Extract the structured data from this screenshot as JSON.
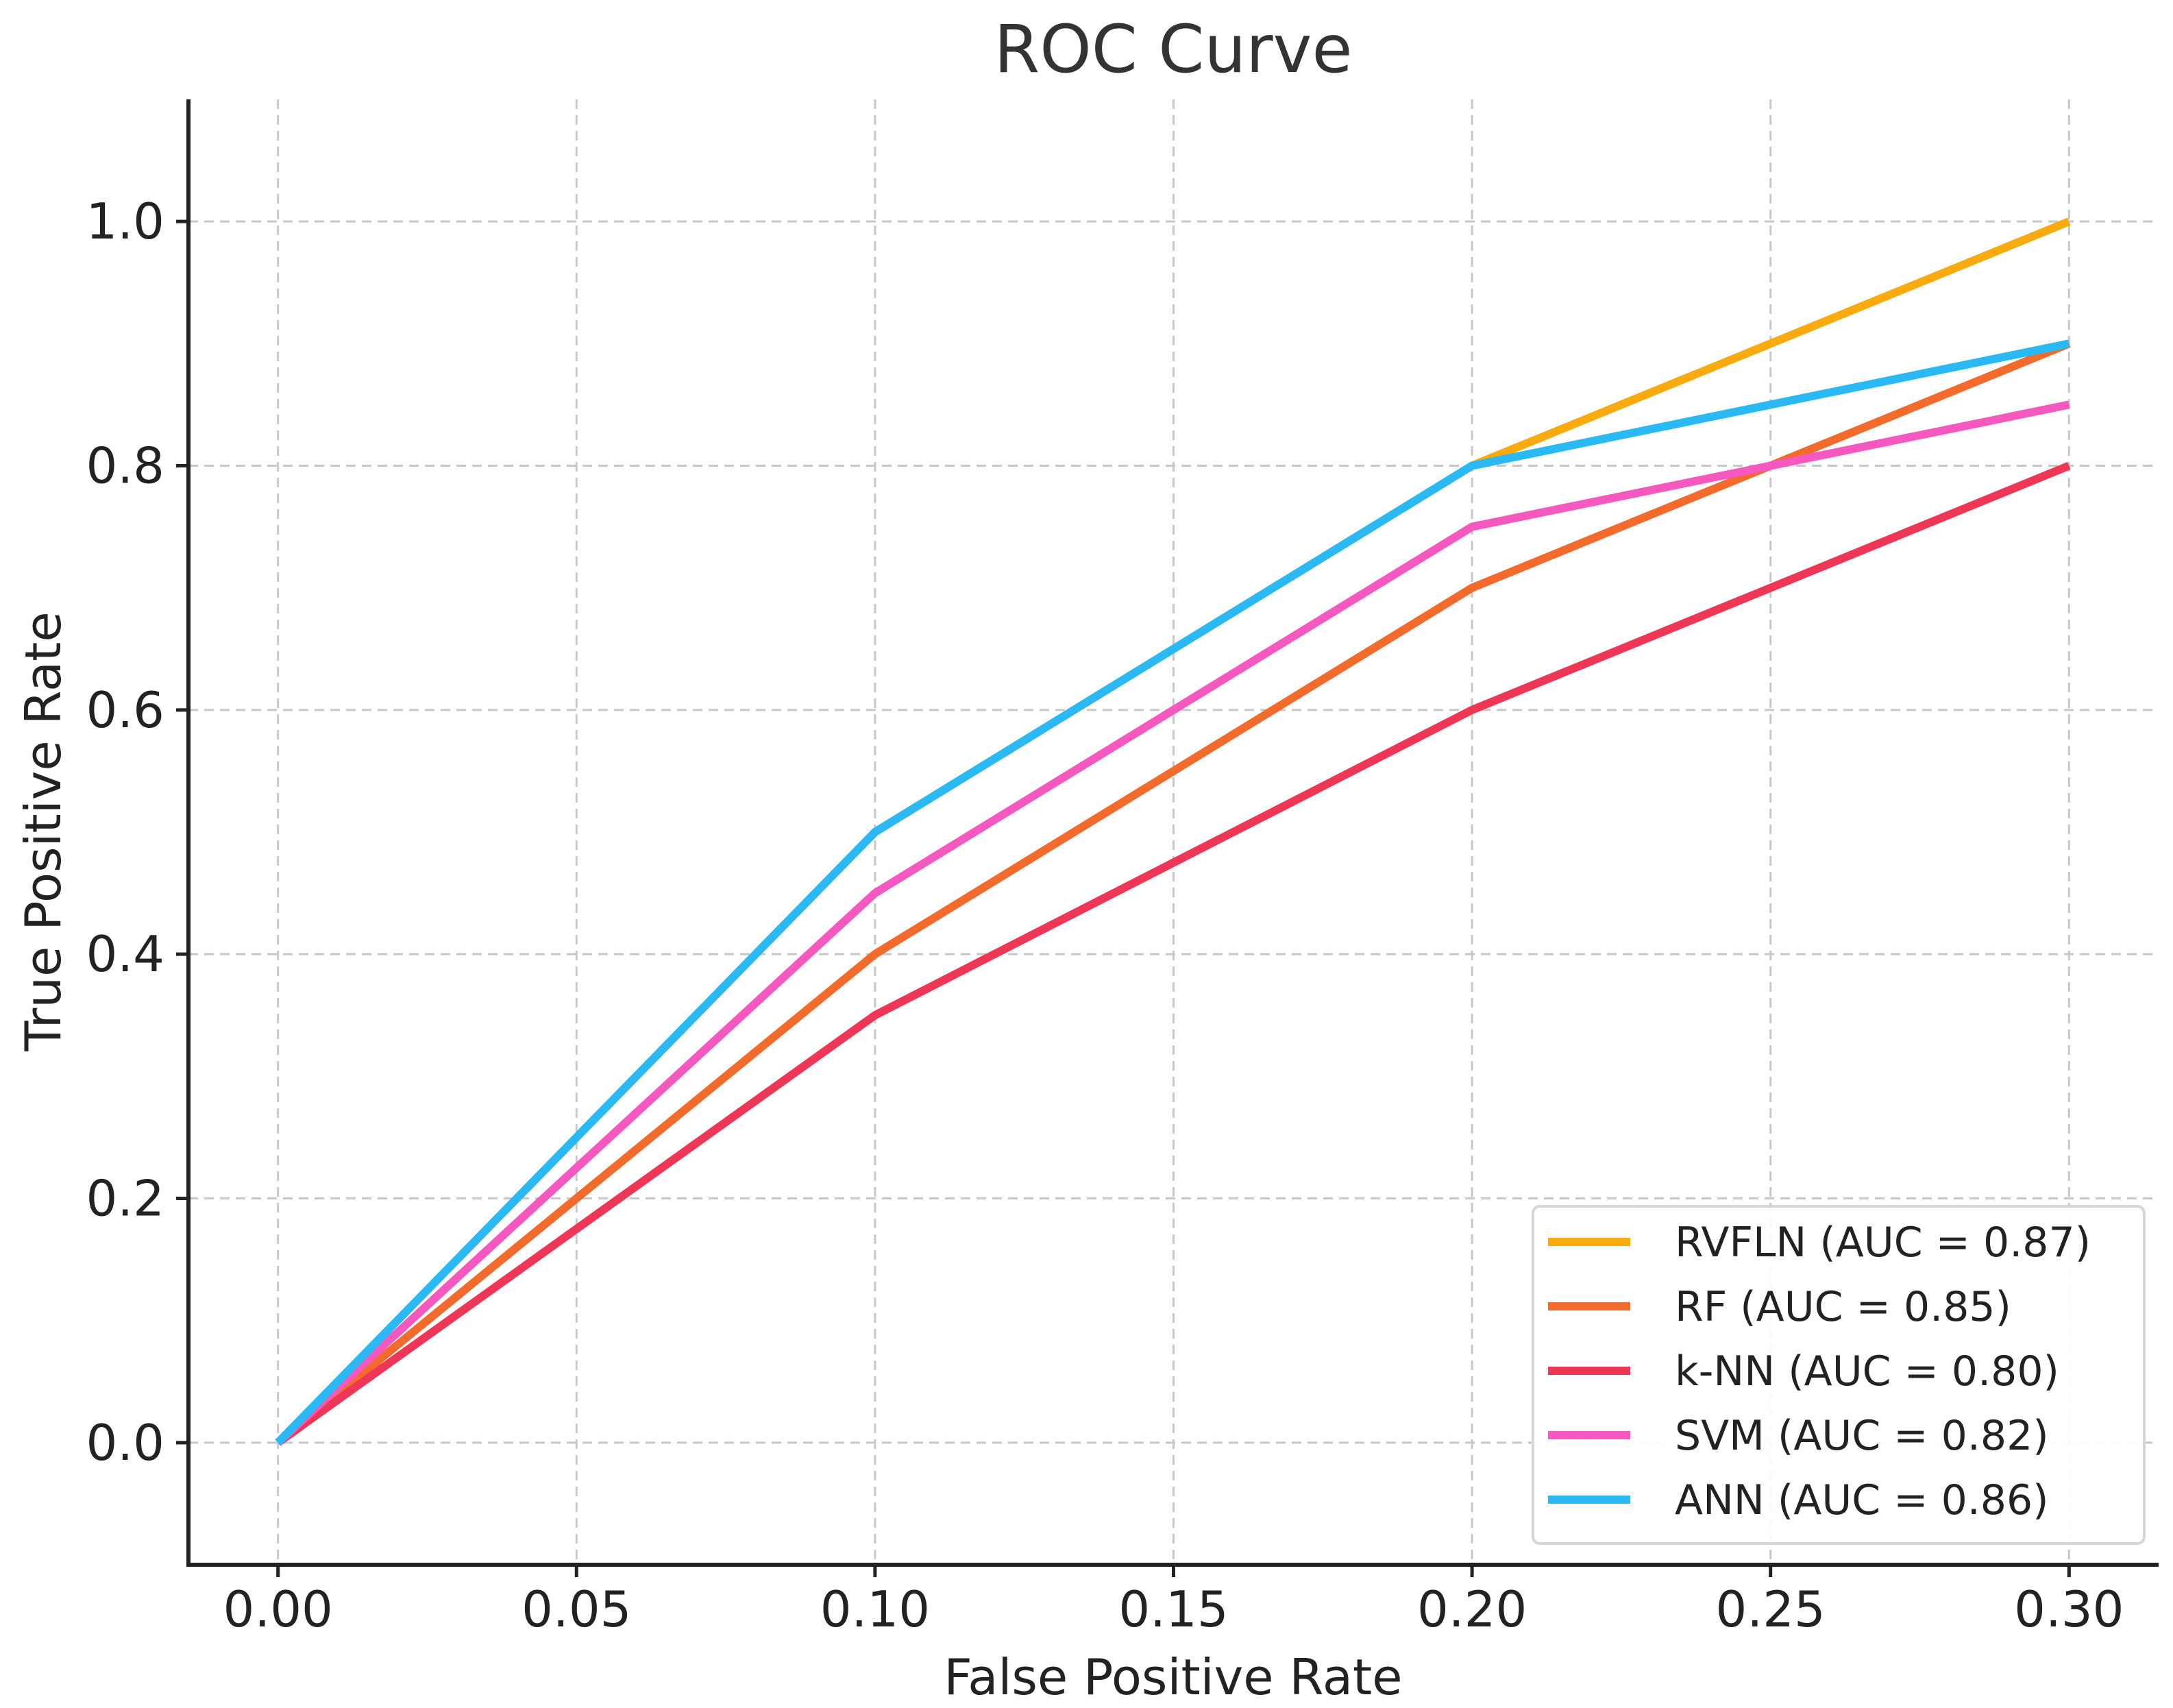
{
  "chart_data": {
    "type": "line",
    "title": "ROC Curve",
    "xlabel": "False Positive Rate",
    "ylabel": "True Positive Rate",
    "xlim": [
      -0.015,
      0.315
    ],
    "ylim": [
      -0.1,
      1.1
    ],
    "x_ticks": [
      "0.00",
      "0.05",
      "0.10",
      "0.15",
      "0.20",
      "0.25",
      "0.30"
    ],
    "y_ticks": [
      "0.0",
      "0.2",
      "0.4",
      "0.6",
      "0.8",
      "1.0"
    ],
    "grid": true,
    "legend_position": "bottom-right",
    "x": [
      0.0,
      0.1,
      0.2,
      0.3
    ],
    "series": [
      {
        "name": "RVFLN (AUC = 0.87)",
        "color": "#F9AA0F",
        "values": [
          0.0,
          0.5,
          0.8,
          1.0
        ]
      },
      {
        "name": "RF (AUC = 0.85)",
        "color": "#F26B2C",
        "values": [
          0.0,
          0.4,
          0.7,
          0.9
        ]
      },
      {
        "name": "k-NN (AUC = 0.80)",
        "color": "#EE3657",
        "values": [
          0.0,
          0.35,
          0.6,
          0.8
        ]
      },
      {
        "name": "SVM (AUC = 0.82)",
        "color": "#F558BE",
        "values": [
          0.0,
          0.45,
          0.75,
          0.85
        ]
      },
      {
        "name": "ANN (AUC = 0.86)",
        "color": "#2AB9F5",
        "values": [
          0.0,
          0.5,
          0.8,
          0.9
        ]
      }
    ]
  }
}
